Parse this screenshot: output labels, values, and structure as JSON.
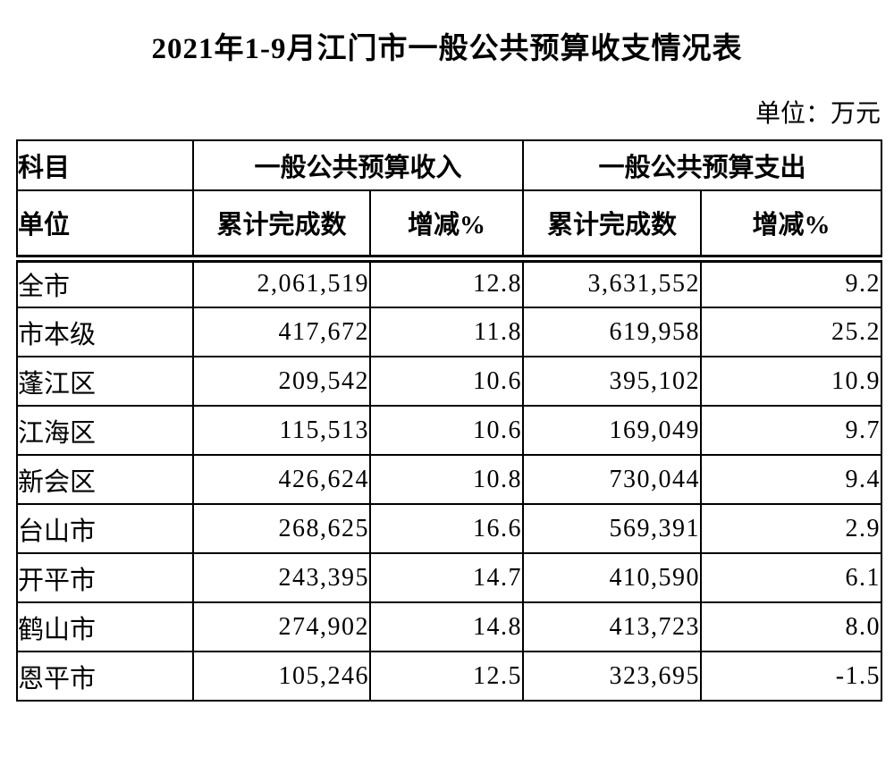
{
  "title": "2021年1-9月江门市一般公共预算收支情况表",
  "unit_note": "单位：万元",
  "table": {
    "header": {
      "row1": [
        "科目",
        "一般公共预算收入",
        "一般公共预算支出"
      ],
      "row2": [
        "单位",
        "累计完成数",
        "增减%",
        "累计完成数",
        "增减%"
      ]
    },
    "rows": [
      {
        "unit": "全市",
        "revenue_total": "2,061,519",
        "revenue_change": "12.8",
        "expenditure_total": "3,631,552",
        "expenditure_change": "9.2"
      },
      {
        "unit": "市本级",
        "revenue_total": "417,672",
        "revenue_change": "11.8",
        "expenditure_total": "619,958",
        "expenditure_change": "25.2"
      },
      {
        "unit": "蓬江区",
        "revenue_total": "209,542",
        "revenue_change": "10.6",
        "expenditure_total": "395,102",
        "expenditure_change": "10.9"
      },
      {
        "unit": "江海区",
        "revenue_total": "115,513",
        "revenue_change": "10.6",
        "expenditure_total": "169,049",
        "expenditure_change": "9.7"
      },
      {
        "unit": "新会区",
        "revenue_total": "426,624",
        "revenue_change": "10.8",
        "expenditure_total": "730,044",
        "expenditure_change": "9.4"
      },
      {
        "unit": "台山市",
        "revenue_total": "268,625",
        "revenue_change": "16.6",
        "expenditure_total": "569,391",
        "expenditure_change": "2.9"
      },
      {
        "unit": "开平市",
        "revenue_total": "243,395",
        "revenue_change": "14.7",
        "expenditure_total": "410,590",
        "expenditure_change": "6.1"
      },
      {
        "unit": "鹤山市",
        "revenue_total": "274,902",
        "revenue_change": "14.8",
        "expenditure_total": "413,723",
        "expenditure_change": "8.0"
      },
      {
        "unit": "恩平市",
        "revenue_total": "105,246",
        "revenue_change": "12.5",
        "expenditure_total": "323,695",
        "expenditure_change": "-1.5"
      }
    ]
  },
  "colors": {
    "text": "#000000",
    "background": "#ffffff",
    "border": "#000000"
  }
}
